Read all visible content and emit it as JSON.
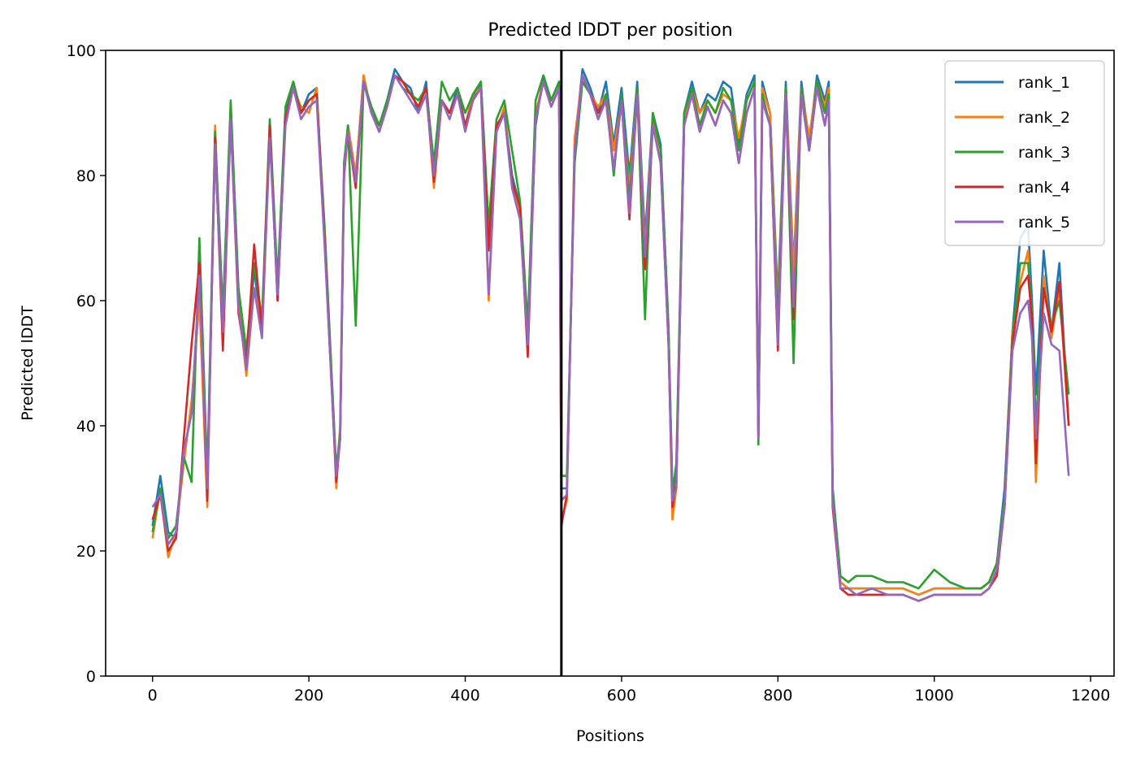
{
  "chart_data": {
    "type": "line",
    "title": "Predicted lDDT per position",
    "xlabel": "Positions",
    "ylabel": "Predicted lDDT",
    "xlim": [
      -60,
      1230
    ],
    "ylim": [
      0,
      100
    ],
    "xticks": [
      0,
      200,
      400,
      600,
      800,
      1000,
      1200
    ],
    "yticks": [
      0,
      20,
      40,
      60,
      80,
      100
    ],
    "grid": false,
    "legend_position": "top-right",
    "vline_x": 523,
    "shared_x": [
      0,
      10,
      20,
      30,
      40,
      50,
      60,
      70,
      80,
      90,
      100,
      110,
      120,
      130,
      140,
      150,
      160,
      170,
      180,
      190,
      200,
      210,
      220,
      230,
      235,
      240,
      245,
      250,
      260,
      270,
      280,
      290,
      300,
      310,
      320,
      330,
      340,
      350,
      360,
      370,
      380,
      390,
      400,
      410,
      420,
      430,
      440,
      450,
      460,
      470,
      480,
      490,
      500,
      510,
      520,
      523,
      530,
      540,
      550,
      560,
      570,
      580,
      590,
      600,
      610,
      620,
      630,
      640,
      650,
      660,
      665,
      670,
      680,
      690,
      700,
      710,
      720,
      730,
      740,
      750,
      760,
      770,
      775,
      780,
      790,
      800,
      810,
      820,
      830,
      840,
      850,
      860,
      865,
      870,
      880,
      890,
      900,
      920,
      940,
      960,
      980,
      1000,
      1020,
      1040,
      1060,
      1070,
      1080,
      1090,
      1100,
      1110,
      1120,
      1125,
      1130,
      1140,
      1150,
      1160,
      1172
    ],
    "series": [
      {
        "name": "rank_1",
        "color": "#1f77b4",
        "values": [
          24,
          32,
          23,
          22,
          36,
          42,
          62,
          30,
          85,
          55,
          90,
          60,
          50,
          65,
          55,
          88,
          60,
          90,
          95,
          90,
          93,
          94,
          70,
          45,
          32,
          38,
          80,
          88,
          80,
          96,
          90,
          88,
          92,
          97,
          95,
          94,
          90,
          95,
          80,
          92,
          90,
          94,
          88,
          92,
          95,
          70,
          88,
          90,
          80,
          75,
          55,
          88,
          96,
          92,
          95,
          30,
          30,
          85,
          97,
          94,
          90,
          95,
          85,
          94,
          80,
          95,
          70,
          90,
          85,
          55,
          30,
          32,
          90,
          95,
          90,
          93,
          92,
          95,
          94,
          85,
          93,
          96,
          40,
          95,
          90,
          60,
          95,
          65,
          95,
          85,
          96,
          92,
          95,
          30,
          15,
          14,
          14,
          14,
          14,
          14,
          13,
          14,
          14,
          14,
          14,
          15,
          18,
          30,
          55,
          70,
          72,
          60,
          45,
          68,
          55,
          66,
          40
        ]
      },
      {
        "name": "rank_2",
        "color": "#ff7f0e",
        "values": [
          22,
          30,
          19,
          23,
          34,
          44,
          60,
          27,
          88,
          54,
          90,
          60,
          48,
          62,
          56,
          88,
          62,
          89,
          94,
          91,
          90,
          94,
          70,
          45,
          30,
          40,
          82,
          88,
          80,
          96,
          90,
          87,
          91,
          96,
          95,
          93,
          91,
          94,
          78,
          92,
          90,
          93,
          88,
          93,
          94,
          60,
          87,
          91,
          78,
          74,
          52,
          90,
          95,
          91,
          94,
          25,
          28,
          86,
          96,
          93,
          91,
          93,
          84,
          92,
          78,
          94,
          68,
          89,
          84,
          54,
          25,
          30,
          89,
          94,
          90,
          92,
          90,
          93,
          92,
          86,
          92,
          95,
          38,
          94,
          90,
          58,
          94,
          64,
          94,
          86,
          95,
          91,
          94,
          28,
          15,
          14,
          14,
          14,
          14,
          14,
          13,
          14,
          14,
          14,
          14,
          15,
          18,
          28,
          55,
          63,
          68,
          55,
          31,
          64,
          54,
          62,
          40
        ]
      },
      {
        "name": "rank_3",
        "color": "#2ca02c",
        "values": [
          23,
          30,
          22,
          24,
          35,
          31,
          70,
          32,
          87,
          58,
          92,
          62,
          52,
          66,
          57,
          89,
          63,
          91,
          95,
          90,
          92,
          93,
          72,
          46,
          33,
          39,
          82,
          88,
          56,
          95,
          91,
          88,
          92,
          96,
          94,
          93,
          92,
          94,
          82,
          95,
          92,
          94,
          90,
          93,
          95,
          72,
          89,
          92,
          84,
          76,
          56,
          92,
          96,
          92,
          95,
          32,
          32,
          82,
          95,
          93,
          89,
          93,
          80,
          93,
          76,
          94,
          57,
          90,
          84,
          56,
          29,
          34,
          90,
          94,
          88,
          92,
          90,
          94,
          92,
          84,
          92,
          95,
          37,
          93,
          88,
          56,
          94,
          50,
          94,
          84,
          95,
          90,
          93,
          30,
          16,
          15,
          16,
          16,
          15,
          15,
          14,
          17,
          15,
          14,
          14,
          15,
          18,
          28,
          54,
          66,
          66,
          58,
          40,
          62,
          56,
          60,
          45
        ]
      },
      {
        "name": "rank_4",
        "color": "#d62728",
        "values": [
          25,
          29,
          20,
          22,
          38,
          53,
          66,
          28,
          86,
          52,
          89,
          58,
          50,
          69,
          55,
          88,
          60,
          89,
          94,
          90,
          92,
          93,
          70,
          44,
          31,
          38,
          80,
          87,
          78,
          95,
          90,
          87,
          91,
          96,
          95,
          93,
          91,
          94,
          79,
          92,
          90,
          93,
          88,
          92,
          94,
          68,
          88,
          90,
          79,
          75,
          51,
          89,
          95,
          91,
          94,
          24,
          29,
          84,
          96,
          93,
          90,
          92,
          81,
          92,
          73,
          93,
          65,
          88,
          82,
          53,
          27,
          31,
          88,
          93,
          87,
          91,
          88,
          92,
          90,
          82,
          90,
          94,
          38,
          92,
          88,
          52,
          93,
          57,
          93,
          84,
          94,
          88,
          92,
          27,
          14,
          13,
          13,
          13,
          13,
          13,
          12,
          13,
          13,
          13,
          13,
          14,
          16,
          27,
          53,
          62,
          64,
          57,
          34,
          62,
          55,
          63,
          40
        ]
      },
      {
        "name": "rank_5",
        "color": "#9467bd",
        "values": [
          27,
          29,
          21,
          23,
          36,
          42,
          64,
          30,
          85,
          55,
          89,
          59,
          49,
          62,
          54,
          86,
          61,
          88,
          94,
          89,
          91,
          92,
          69,
          44,
          32,
          38,
          81,
          87,
          79,
          95,
          90,
          87,
          91,
          96,
          94,
          92,
          90,
          93,
          80,
          92,
          89,
          93,
          87,
          92,
          94,
          61,
          87,
          90,
          78,
          73,
          53,
          89,
          95,
          91,
          94,
          28,
          29,
          84,
          96,
          93,
          89,
          92,
          81,
          92,
          74,
          93,
          67,
          88,
          82,
          53,
          28,
          30,
          88,
          93,
          87,
          91,
          88,
          92,
          90,
          82,
          90,
          94,
          38,
          92,
          88,
          53,
          93,
          59,
          93,
          84,
          94,
          88,
          92,
          28,
          14,
          14,
          13,
          14,
          13,
          13,
          12,
          13,
          13,
          13,
          13,
          14,
          17,
          27,
          52,
          58,
          60,
          54,
          38,
          58,
          53,
          52,
          32
        ]
      }
    ]
  }
}
